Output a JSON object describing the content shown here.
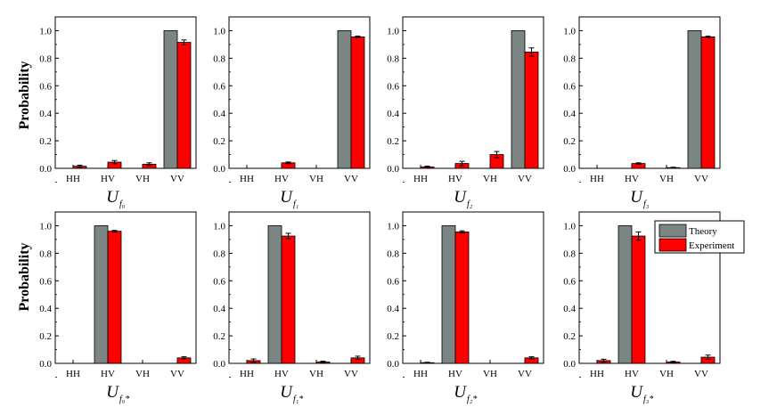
{
  "colors": {
    "theory": "#7a8584",
    "experiment": "#ff0000"
  },
  "legend": {
    "theory": "Theory",
    "experiment": "Experiment"
  },
  "ylabel": "Probability",
  "chart_data": [
    {
      "type": "bar",
      "label_main": "U",
      "label_sub": "f₀",
      "categories": [
        "HH",
        "HV",
        "VH",
        "VV"
      ],
      "series": [
        {
          "name": "Theory",
          "values": [
            0,
            0,
            0,
            1.0
          ]
        },
        {
          "name": "Experiment",
          "values": [
            0.015,
            0.045,
            0.03,
            0.915
          ],
          "errors": [
            0.008,
            0.012,
            0.01,
            0.018
          ]
        }
      ],
      "ylim": [
        0,
        1.1
      ],
      "yticks": [
        "0.0",
        "0.2",
        "0.4",
        "0.6",
        "0.8",
        "1.0"
      ]
    },
    {
      "type": "bar",
      "label_main": "U",
      "label_sub": "f₁",
      "categories": [
        "HH",
        "HV",
        "VH",
        "VV"
      ],
      "series": [
        {
          "name": "Theory",
          "values": [
            0,
            0,
            0,
            1.0
          ]
        },
        {
          "name": "Experiment",
          "values": [
            0,
            0.04,
            0,
            0.955
          ],
          "errors": [
            0,
            0.006,
            0,
            0.006
          ]
        }
      ],
      "ylim": [
        0,
        1.1
      ],
      "yticks": [
        "0.0",
        "0.2",
        "0.4",
        "0.6",
        "0.8",
        "1.0"
      ]
    },
    {
      "type": "bar",
      "label_main": "U",
      "label_sub": "f₂",
      "categories": [
        "HH",
        "HV",
        "VH",
        "VV"
      ],
      "series": [
        {
          "name": "Theory",
          "values": [
            0,
            0,
            0,
            1.0
          ]
        },
        {
          "name": "Experiment",
          "values": [
            0.01,
            0.035,
            0.1,
            0.845
          ],
          "errors": [
            0.006,
            0.016,
            0.022,
            0.03
          ]
        }
      ],
      "ylim": [
        0,
        1.1
      ],
      "yticks": [
        "0.0",
        "0.2",
        "0.4",
        "0.6",
        "0.8",
        "1.0"
      ]
    },
    {
      "type": "bar",
      "label_main": "U",
      "label_sub": "f₃",
      "categories": [
        "HH",
        "HV",
        "VH",
        "VV"
      ],
      "series": [
        {
          "name": "Theory",
          "values": [
            0,
            0,
            0,
            1.0
          ]
        },
        {
          "name": "Experiment",
          "values": [
            0,
            0.035,
            0.005,
            0.955
          ],
          "errors": [
            0,
            0.005,
            0.003,
            0.005
          ]
        }
      ],
      "ylim": [
        0,
        1.1
      ],
      "yticks": [
        "0.0",
        "0.2",
        "0.4",
        "0.6",
        "0.8",
        "1.0"
      ]
    },
    {
      "type": "bar",
      "label_main": "U",
      "label_sub": "f₀*",
      "categories": [
        "HH",
        "HV",
        "VH",
        "VV"
      ],
      "series": [
        {
          "name": "Theory",
          "values": [
            0,
            1.0,
            0,
            0
          ]
        },
        {
          "name": "Experiment",
          "values": [
            0,
            0.96,
            0,
            0.04
          ],
          "errors": [
            0,
            0.006,
            0,
            0.008
          ]
        }
      ],
      "ylim": [
        0,
        1.1
      ],
      "yticks": [
        "0.0",
        "0.2",
        "0.4",
        "0.6",
        "0.8",
        "1.0"
      ]
    },
    {
      "type": "bar",
      "label_main": "U",
      "label_sub": "f₁*",
      "categories": [
        "HH",
        "HV",
        "VH",
        "VV"
      ],
      "series": [
        {
          "name": "Theory",
          "values": [
            0,
            1.0,
            0,
            0
          ]
        },
        {
          "name": "Experiment",
          "values": [
            0.02,
            0.925,
            0.01,
            0.04
          ],
          "errors": [
            0.012,
            0.02,
            0.006,
            0.012
          ]
        }
      ],
      "ylim": [
        0,
        1.1
      ],
      "yticks": [
        "0.0",
        "0.2",
        "0.4",
        "0.6",
        "0.8",
        "1.0"
      ]
    },
    {
      "type": "bar",
      "label_main": "U",
      "label_sub": "f₂*",
      "categories": [
        "HH",
        "HV",
        "VH",
        "VV"
      ],
      "series": [
        {
          "name": "Theory",
          "values": [
            0,
            1.0,
            0,
            0
          ]
        },
        {
          "name": "Experiment",
          "values": [
            0.005,
            0.955,
            0,
            0.04
          ],
          "errors": [
            0.003,
            0.008,
            0,
            0.008
          ]
        }
      ],
      "ylim": [
        0,
        1.1
      ],
      "yticks": [
        "0.0",
        "0.2",
        "0.4",
        "0.6",
        "0.8",
        "1.0"
      ]
    },
    {
      "type": "bar",
      "label_main": "U",
      "label_sub": "f₃*",
      "categories": [
        "HH",
        "HV",
        "VH",
        "VV"
      ],
      "series": [
        {
          "name": "Theory",
          "values": [
            0,
            1.0,
            0,
            0
          ]
        },
        {
          "name": "Experiment",
          "values": [
            0.02,
            0.925,
            0.01,
            0.045
          ],
          "errors": [
            0.01,
            0.03,
            0.005,
            0.015
          ]
        }
      ],
      "ylim": [
        0,
        1.1
      ],
      "yticks": [
        "0.0",
        "0.2",
        "0.4",
        "0.6",
        "0.8",
        "1.0"
      ]
    }
  ]
}
